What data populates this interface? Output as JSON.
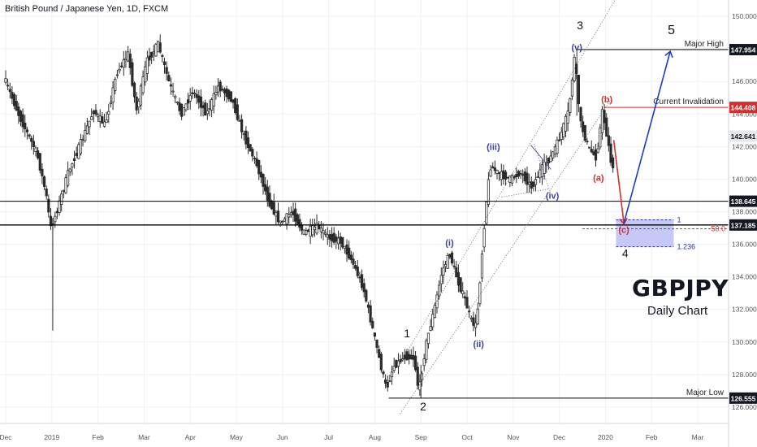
{
  "header": {
    "title": "British Pound / Japanese Yen, 1D, FXCM"
  },
  "watermark": {
    "symbol": "GBPJPY",
    "subtitle": "Daily Chart"
  },
  "colors": {
    "up": "#2b2b2b",
    "down": "#2b2b2b",
    "red": "#d32f2f",
    "blue": "#1f3bbf",
    "navy": "#3b3f9a",
    "zone": "#b3b7f5"
  },
  "chart_data": {
    "type": "candlestick",
    "ylim": [
      125.0,
      151.0
    ],
    "y_ticks": [
      "150.000",
      "148.000",
      "146.000",
      "144.000",
      "142.000",
      "140.000",
      "138.000",
      "136.000",
      "134.000",
      "132.000",
      "130.000",
      "128.000",
      "126.000"
    ],
    "y_tick_values": [
      150,
      148,
      146,
      144,
      142,
      140,
      138,
      136,
      134,
      132,
      130,
      128,
      126
    ],
    "x_ticks": [
      "Dec",
      "2019",
      "Feb",
      "Mar",
      "Apr",
      "May",
      "Jun",
      "Jul",
      "Aug",
      "Sep",
      "Oct",
      "Nov",
      "Dec",
      "2020",
      "Feb",
      "Mar"
    ],
    "x_tick_months": [
      0,
      1,
      2,
      3,
      4,
      5,
      6,
      7,
      8,
      9,
      10,
      11,
      12,
      13,
      14,
      15
    ],
    "price_labels": [
      {
        "text": "147.954",
        "value": 147.954,
        "style": "black"
      },
      {
        "text": "144.408",
        "value": 144.408,
        "style": "red"
      },
      {
        "text": "142.641",
        "value": 142.641,
        "style": "grey"
      },
      {
        "text": "138.645",
        "value": 138.645,
        "style": "black"
      },
      {
        "text": "137.185",
        "value": 137.185,
        "style": "black"
      },
      {
        "text": "126.555",
        "value": 126.555,
        "style": "black"
      }
    ],
    "levels": [
      {
        "label": "Major High",
        "value": 147.954
      },
      {
        "label": "Current Invalidation",
        "value": 144.408
      },
      {
        "label": "Major Low",
        "value": 126.555
      }
    ],
    "fib_labels": [
      "1",
      "50.0",
      "1.236"
    ],
    "wave_labels": {
      "primary": [
        "1",
        "2",
        "3",
        "4",
        "5"
      ],
      "minor": [
        "(i)",
        "(ii)",
        "(iii)",
        "(iv)",
        "(v)"
      ],
      "corrective": [
        "(a)",
        "(b)",
        "(c)"
      ]
    },
    "series": [
      {
        "name": "",
        "anchors": [
          [
            0.0,
            146.3
          ],
          [
            0.35,
            143.8
          ],
          [
            0.72,
            141.6
          ],
          [
            0.92,
            139.1
          ],
          [
            1.02,
            137.0
          ],
          [
            1.14,
            137.9
          ],
          [
            1.4,
            140.4
          ],
          [
            1.7,
            142.4
          ],
          [
            1.95,
            144.2
          ],
          [
            2.2,
            143.3
          ],
          [
            2.45,
            146.5
          ],
          [
            2.7,
            147.7
          ],
          [
            2.88,
            144.2
          ],
          [
            3.1,
            147.2
          ],
          [
            3.35,
            148.3
          ],
          [
            3.6,
            145.8
          ],
          [
            3.85,
            144.0
          ],
          [
            4.1,
            145.4
          ],
          [
            4.4,
            144.0
          ],
          [
            4.65,
            145.7
          ],
          [
            4.95,
            144.9
          ],
          [
            5.2,
            142.7
          ],
          [
            5.5,
            140.8
          ],
          [
            5.75,
            138.6
          ],
          [
            6.0,
            137.3
          ],
          [
            6.25,
            138.0
          ],
          [
            6.5,
            136.7
          ],
          [
            6.8,
            137.1
          ],
          [
            7.05,
            136.4
          ],
          [
            7.3,
            136.2
          ],
          [
            7.55,
            135.0
          ],
          [
            7.8,
            133.3
          ],
          [
            8.0,
            130.8
          ],
          [
            8.18,
            128.5
          ],
          [
            8.3,
            127.1
          ],
          [
            8.45,
            128.5
          ],
          [
            8.7,
            129.1
          ],
          [
            8.9,
            129.0
          ],
          [
            9.0,
            126.9
          ],
          [
            9.15,
            129.8
          ],
          [
            9.35,
            132.2
          ],
          [
            9.5,
            134.3
          ],
          [
            9.67,
            135.4
          ],
          [
            9.85,
            133.7
          ],
          [
            10.0,
            132.6
          ],
          [
            10.15,
            131.2
          ],
          [
            10.25,
            131.0
          ],
          [
            10.35,
            134.7
          ],
          [
            10.45,
            138.3
          ],
          [
            10.55,
            140.8
          ],
          [
            10.75,
            140.3
          ],
          [
            11.0,
            140.0
          ],
          [
            11.2,
            140.4
          ],
          [
            11.45,
            139.5
          ],
          [
            11.65,
            140.6
          ],
          [
            11.85,
            141.3
          ],
          [
            12.05,
            142.5
          ],
          [
            12.25,
            144.2
          ],
          [
            12.38,
            147.6
          ],
          [
            12.5,
            143.5
          ],
          [
            12.68,
            141.9
          ],
          [
            12.85,
            141.3
          ],
          [
            12.98,
            144.2
          ],
          [
            13.1,
            142.3
          ],
          [
            13.18,
            140.8
          ]
        ]
      }
    ]
  }
}
